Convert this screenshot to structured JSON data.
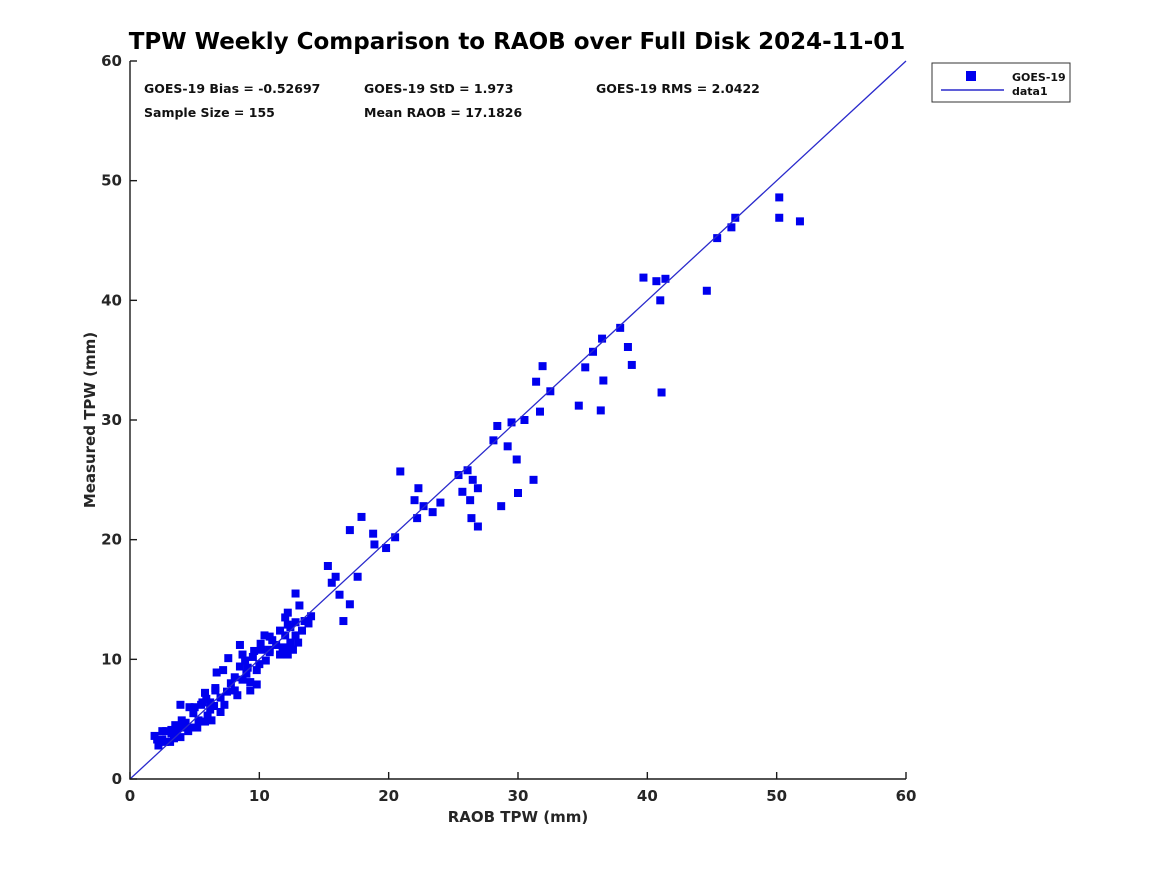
{
  "chart_data": {
    "type": "scatter",
    "title": "TPW Weekly Comparison to RAOB over Full Disk 2024-11-01",
    "xlabel": "RAOB TPW (mm)",
    "ylabel": "Measured TPW (mm)",
    "xlim": [
      0,
      60
    ],
    "ylim": [
      0,
      60
    ],
    "xticks": [
      0,
      10,
      20,
      30,
      40,
      50,
      60
    ],
    "yticks": [
      0,
      10,
      20,
      30,
      40,
      50,
      60
    ],
    "grid": false,
    "legend_position": "outside-top-right",
    "annotations": {
      "bias": "GOES-19 Bias = -0.52697",
      "std": "GOES-19 StD = 1.973",
      "rms": "GOES-19 RMS = 2.0422",
      "sample_size": "Sample Size = 155",
      "mean_raob": "Mean RAOB = 17.1826"
    },
    "legend": {
      "entries": [
        {
          "label": "GOES-19",
          "type": "marker",
          "color": "#0000EE"
        },
        {
          "label": "data1",
          "type": "line",
          "color": "#2A2ACC"
        }
      ]
    },
    "series": [
      {
        "name": "GOES-19",
        "type": "scatter",
        "marker": "square",
        "marker_size": 8,
        "color": "#0000EE",
        "points": [
          [
            50.2,
            48.6
          ],
          [
            50.2,
            46.9
          ],
          [
            51.8,
            46.6
          ],
          [
            46.8,
            46.9
          ],
          [
            46.5,
            46.1
          ],
          [
            45.4,
            45.2
          ],
          [
            44.6,
            40.8
          ],
          [
            39.7,
            41.9
          ],
          [
            40.7,
            41.6
          ],
          [
            41.4,
            41.8
          ],
          [
            41.0,
            40.0
          ],
          [
            41.1,
            32.3
          ],
          [
            37.9,
            37.7
          ],
          [
            36.5,
            36.8
          ],
          [
            35.8,
            35.7
          ],
          [
            38.5,
            36.1
          ],
          [
            38.8,
            34.6
          ],
          [
            36.6,
            33.3
          ],
          [
            36.4,
            30.8
          ],
          [
            35.2,
            34.4
          ],
          [
            34.7,
            31.2
          ],
          [
            32.5,
            32.4
          ],
          [
            31.9,
            34.5
          ],
          [
            31.4,
            33.2
          ],
          [
            31.7,
            30.7
          ],
          [
            31.2,
            25.0
          ],
          [
            30.5,
            30.0
          ],
          [
            29.5,
            29.8
          ],
          [
            28.4,
            29.5
          ],
          [
            28.1,
            28.3
          ],
          [
            29.2,
            27.8
          ],
          [
            29.9,
            26.7
          ],
          [
            30.0,
            23.9
          ],
          [
            28.7,
            22.8
          ],
          [
            26.1,
            25.8
          ],
          [
            25.4,
            25.4
          ],
          [
            26.5,
            25.0
          ],
          [
            26.9,
            24.3
          ],
          [
            25.7,
            24.0
          ],
          [
            26.3,
            23.3
          ],
          [
            24.0,
            23.1
          ],
          [
            23.4,
            22.3
          ],
          [
            22.7,
            22.8
          ],
          [
            22.3,
            24.3
          ],
          [
            22.0,
            23.3
          ],
          [
            22.2,
            21.8
          ],
          [
            26.4,
            21.8
          ],
          [
            26.9,
            21.1
          ],
          [
            20.9,
            25.7
          ],
          [
            20.5,
            20.2
          ],
          [
            19.8,
            19.3
          ],
          [
            18.9,
            19.6
          ],
          [
            18.8,
            20.5
          ],
          [
            17.9,
            21.9
          ],
          [
            17.0,
            20.8
          ],
          [
            17.6,
            16.9
          ],
          [
            16.2,
            15.4
          ],
          [
            15.3,
            17.8
          ],
          [
            15.9,
            16.9
          ],
          [
            15.6,
            16.4
          ],
          [
            17.0,
            14.6
          ],
          [
            16.5,
            13.2
          ],
          [
            14.0,
            13.6
          ],
          [
            13.8,
            13.0
          ],
          [
            13.5,
            13.2
          ],
          [
            13.1,
            14.5
          ],
          [
            12.8,
            15.5
          ],
          [
            12.2,
            13.9
          ],
          [
            12.0,
            13.5
          ],
          [
            12.4,
            12.7
          ],
          [
            12.2,
            12.9
          ],
          [
            12.8,
            13.1
          ],
          [
            13.3,
            12.4
          ],
          [
            12.0,
            12.0
          ],
          [
            12.8,
            12.0
          ],
          [
            12.4,
            11.4
          ],
          [
            13.0,
            11.4
          ],
          [
            11.8,
            11.0
          ],
          [
            12.6,
            10.8
          ],
          [
            12.0,
            10.9
          ],
          [
            11.6,
            10.4
          ],
          [
            12.2,
            10.4
          ],
          [
            11.6,
            12.4
          ],
          [
            11.3,
            11.2
          ],
          [
            11.0,
            11.6
          ],
          [
            10.8,
            11.9
          ],
          [
            10.8,
            10.8
          ],
          [
            10.8,
            10.6
          ],
          [
            10.4,
            12.0
          ],
          [
            10.2,
            10.8
          ],
          [
            10.1,
            11.3
          ],
          [
            10.5,
            9.9
          ],
          [
            10.0,
            9.6
          ],
          [
            9.6,
            10.7
          ],
          [
            9.5,
            10.2
          ],
          [
            9.1,
            9.3
          ],
          [
            8.9,
            9.9
          ],
          [
            8.7,
            10.4
          ],
          [
            8.5,
            11.2
          ],
          [
            8.5,
            9.4
          ],
          [
            9.8,
            9.1
          ],
          [
            9.3,
            8.1
          ],
          [
            9.0,
            8.8
          ],
          [
            8.7,
            8.3
          ],
          [
            8.1,
            8.5
          ],
          [
            8.1,
            7.4
          ],
          [
            7.8,
            8.0
          ],
          [
            7.6,
            10.1
          ],
          [
            7.5,
            7.3
          ],
          [
            7.2,
            9.1
          ],
          [
            6.7,
            8.9
          ],
          [
            6.6,
            7.6
          ],
          [
            6.6,
            7.4
          ],
          [
            7.0,
            6.8
          ],
          [
            7.3,
            6.2
          ],
          [
            8.3,
            7.0
          ],
          [
            9.3,
            7.4
          ],
          [
            9.8,
            7.9
          ],
          [
            5.8,
            7.2
          ],
          [
            5.9,
            6.7
          ],
          [
            6.2,
            6.4
          ],
          [
            5.6,
            6.4
          ],
          [
            5.0,
            6.0
          ],
          [
            5.5,
            6.2
          ],
          [
            4.6,
            6.0
          ],
          [
            3.9,
            6.2
          ],
          [
            6.5,
            6.1
          ],
          [
            6.2,
            5.8
          ],
          [
            6.0,
            5.3
          ],
          [
            7.0,
            5.6
          ],
          [
            5.3,
            4.9
          ],
          [
            5.8,
            4.8
          ],
          [
            6.3,
            4.9
          ],
          [
            5.2,
            4.3
          ],
          [
            4.9,
            5.5
          ],
          [
            4.5,
            4.0
          ],
          [
            4.6,
            4.3
          ],
          [
            4.3,
            4.7
          ],
          [
            4.0,
            4.9
          ],
          [
            4.1,
            4.3
          ],
          [
            3.9,
            3.5
          ],
          [
            3.7,
            4.3
          ],
          [
            3.6,
            3.7
          ],
          [
            3.5,
            4.5
          ],
          [
            3.4,
            3.4
          ],
          [
            3.2,
            4.1
          ],
          [
            3.2,
            3.8
          ],
          [
            3.1,
            3.1
          ],
          [
            2.8,
            4.0
          ],
          [
            2.7,
            3.1
          ],
          [
            2.5,
            4.0
          ],
          [
            2.5,
            3.3
          ],
          [
            2.1,
            3.3
          ],
          [
            2.2,
            2.8
          ],
          [
            1.9,
            3.6
          ]
        ]
      },
      {
        "name": "data1",
        "type": "line",
        "color": "#2A2ACC",
        "from": [
          0,
          0
        ],
        "to": [
          60,
          60
        ]
      }
    ]
  },
  "colors": {
    "background": "#ffffff",
    "axis": "#1a1a1a",
    "marker": "#0000EE",
    "line": "#2A2ACC"
  }
}
